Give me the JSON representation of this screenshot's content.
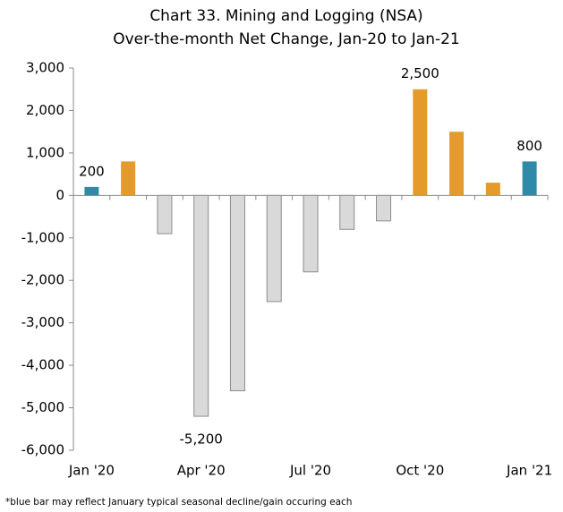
{
  "chart_data": {
    "type": "bar",
    "title": "Chart 33. Mining and Logging (NSA)",
    "subtitle": "Over-the-month Net Change, Jan-20 to Jan-21",
    "categories": [
      "Jan '20",
      null,
      null,
      "Apr '20",
      null,
      null,
      "Jul '20",
      null,
      null,
      "Oct '20",
      null,
      null,
      "Jan '21"
    ],
    "values": [
      200,
      800,
      -900,
      -5200,
      -4600,
      -2500,
      -1800,
      -800,
      -600,
      2500,
      1500,
      300,
      800
    ],
    "value_labels": [
      "200",
      null,
      null,
      "-5,200",
      null,
      null,
      null,
      null,
      null,
      "2,500",
      null,
      null,
      "800"
    ],
    "colors": [
      "#2e8aa6",
      "#e59b2c",
      "#d9d9d9",
      "#d9d9d9",
      "#d9d9d9",
      "#d9d9d9",
      "#d9d9d9",
      "#d9d9d9",
      "#d9d9d9",
      "#e59b2c",
      "#e59b2c",
      "#e59b2c",
      "#2e8aa6"
    ],
    "ylim": [
      -6000,
      3000
    ],
    "yticks": [
      {
        "value": -6000,
        "label": "-6,000"
      },
      {
        "value": -5000,
        "label": "-5,000"
      },
      {
        "value": -4000,
        "label": "-4,000"
      },
      {
        "value": -3000,
        "label": "-3,000"
      },
      {
        "value": -2000,
        "label": "-2,000"
      },
      {
        "value": -1000,
        "label": "-1,000"
      },
      0,
      {
        "value": 1000,
        "label": "1,000"
      },
      {
        "value": 2000,
        "label": "2,000"
      },
      {
        "value": 3000,
        "label": "3,000"
      }
    ],
    "footnote": "*blue bar may reflect January typical seasonal decline/gain occuring each"
  }
}
